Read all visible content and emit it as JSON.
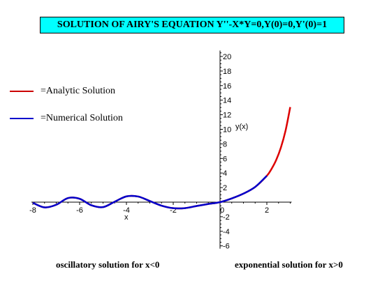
{
  "chart_data": {
    "type": "line",
    "title": "SOLUTION OF AIRY'S EQUATION Y''-X*Y=0,Y(0)=0,Y'(0)=1",
    "xlabel": "x",
    "ylabel": "y(x)",
    "xlim": [
      -8,
      3
    ],
    "ylim": [
      -6,
      21
    ],
    "x_ticks": [
      -8,
      -6,
      -4,
      -2,
      0,
      2
    ],
    "x_tick_labels": [
      "-8",
      "-6",
      "-4",
      "-2",
      "0",
      "2"
    ],
    "y_ticks": [
      -6,
      -4,
      -2,
      2,
      4,
      6,
      8,
      10,
      12,
      14,
      16,
      18,
      20
    ],
    "y_tick_labels": [
      "-6",
      "-4",
      "-2",
      "2",
      "4",
      "6",
      "8",
      "10",
      "12",
      "14",
      "16",
      "18",
      "20"
    ],
    "series": [
      {
        "name": "=Analytic Solution",
        "color": "#ff0000",
        "x": [
          -8.0,
          -7.5,
          -7.0,
          -6.5,
          -6.0,
          -5.5,
          -5.0,
          -4.5,
          -4.0,
          -3.5,
          -3.0,
          -2.5,
          -2.0,
          -1.5,
          -1.0,
          -0.5,
          0.0,
          0.5,
          1.0,
          1.5,
          2.0,
          2.2,
          2.4,
          2.6,
          2.8,
          3.0
        ],
        "y": [
          -0.09,
          -0.72,
          -0.36,
          0.56,
          0.46,
          -0.43,
          -0.68,
          0.06,
          0.79,
          0.77,
          0.15,
          -0.48,
          -0.83,
          -0.82,
          -0.53,
          -0.25,
          0.0,
          0.51,
          1.17,
          2.08,
          3.62,
          4.56,
          5.79,
          7.49,
          9.82,
          13.05
        ]
      },
      {
        "name": "=Numerical Solution",
        "color": "#0000cc",
        "x": [
          -8.0,
          -7.5,
          -7.0,
          -6.5,
          -6.0,
          -5.5,
          -5.0,
          -4.5,
          -4.0,
          -3.5,
          -3.0,
          -2.5,
          -2.0,
          -1.5,
          -1.0,
          -0.5,
          0.0,
          0.5,
          1.0,
          1.5,
          2.0
        ],
        "y": [
          -0.09,
          -0.72,
          -0.36,
          0.56,
          0.46,
          -0.43,
          -0.68,
          0.06,
          0.79,
          0.77,
          0.15,
          -0.48,
          -0.83,
          -0.82,
          -0.53,
          -0.25,
          0.0,
          0.51,
          1.17,
          2.08,
          3.62
        ]
      }
    ]
  },
  "captions": {
    "left": "oscillatory solution for x<0",
    "right": "exponential solution for x>0"
  }
}
